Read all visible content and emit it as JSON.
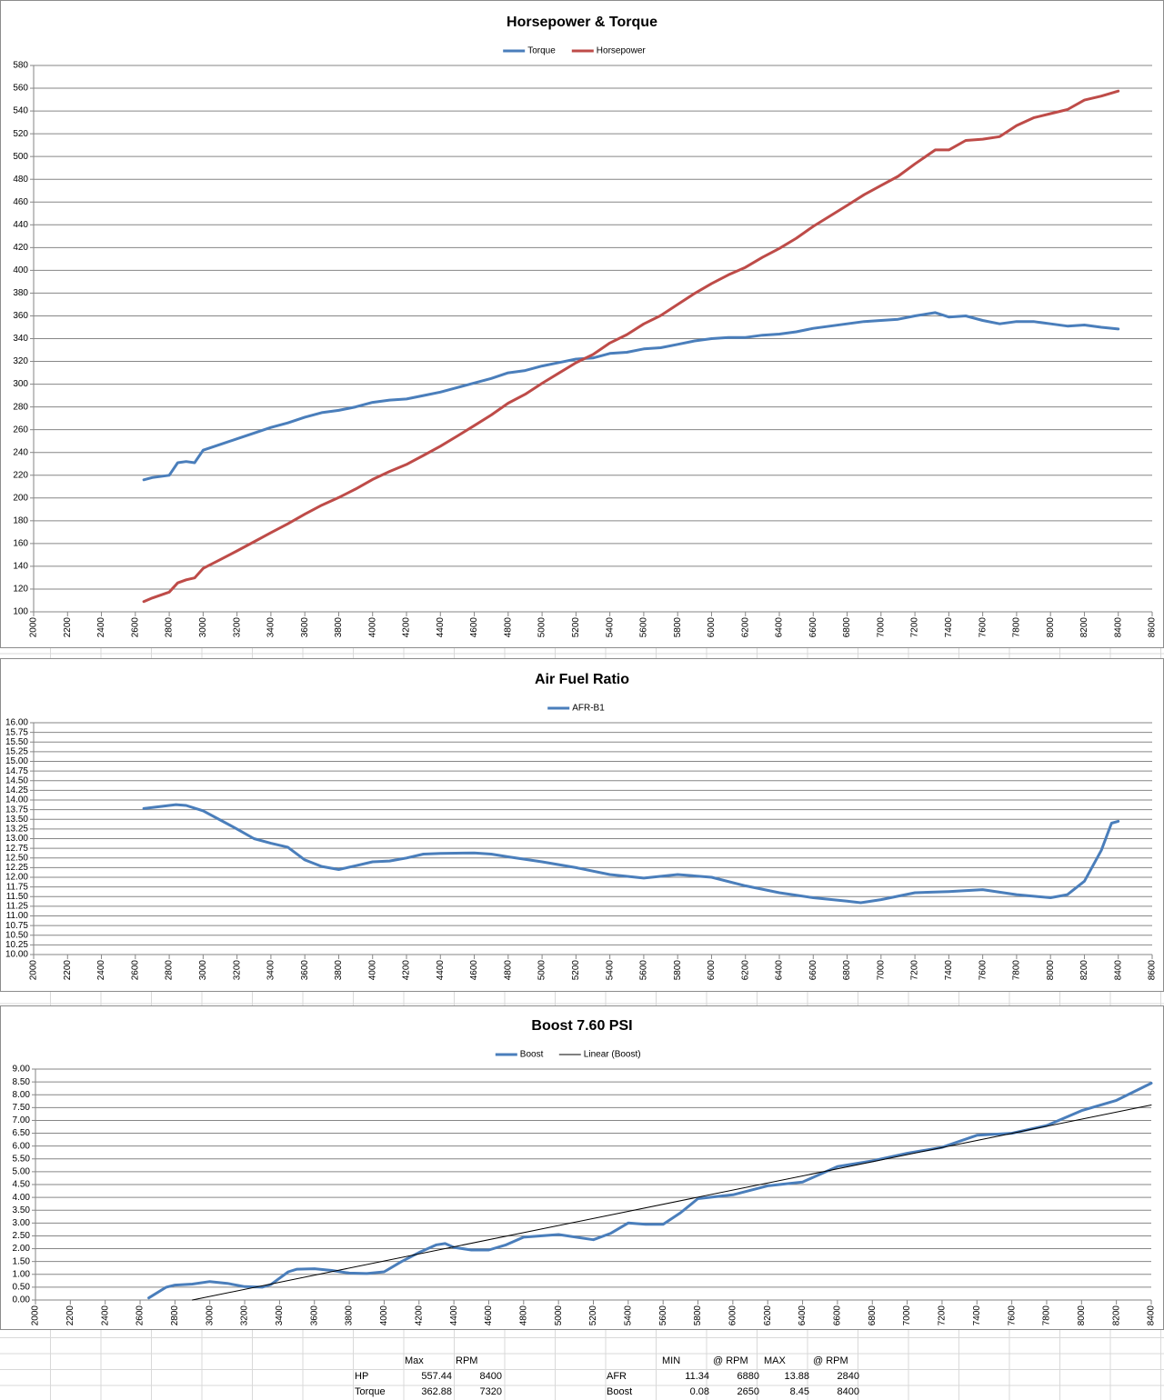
{
  "chart_data": [
    {
      "type": "line",
      "title": "Horsepower & Torque",
      "legend": "top",
      "grid": true,
      "xlim": [
        2000,
        8600
      ],
      "xticks": [
        2000,
        2200,
        2400,
        2600,
        2800,
        3000,
        3200,
        3400,
        3600,
        3800,
        4000,
        4200,
        4400,
        4600,
        4800,
        5000,
        5200,
        5400,
        5600,
        5800,
        6000,
        6200,
        6400,
        6600,
        6800,
        7000,
        7200,
        7400,
        7600,
        7800,
        8000,
        8200,
        8400,
        8600
      ],
      "ylim": [
        100,
        580
      ],
      "yticks": [
        100,
        120,
        140,
        160,
        180,
        200,
        220,
        240,
        260,
        280,
        300,
        320,
        340,
        360,
        380,
        400,
        420,
        440,
        460,
        480,
        500,
        520,
        540,
        560,
        580
      ],
      "x": [
        2650,
        2700,
        2800,
        2850,
        2900,
        2950,
        3000,
        3100,
        3200,
        3300,
        3400,
        3500,
        3600,
        3700,
        3800,
        3900,
        4000,
        4100,
        4200,
        4300,
        4400,
        4500,
        4600,
        4700,
        4800,
        4900,
        5000,
        5100,
        5200,
        5300,
        5400,
        5500,
        5600,
        5700,
        5800,
        5900,
        6000,
        6100,
        6200,
        6300,
        6400,
        6500,
        6600,
        6700,
        6800,
        6900,
        7000,
        7100,
        7200,
        7320,
        7400,
        7500,
        7600,
        7700,
        7800,
        7900,
        8000,
        8100,
        8200,
        8300,
        8400
      ],
      "series": [
        {
          "name": "Torque",
          "color": "#4a7ebb",
          "line_width": 3,
          "values": [
            216,
            218,
            220,
            231,
            232,
            231,
            242,
            247,
            252,
            257,
            262,
            266,
            271,
            275,
            277,
            280,
            284,
            286,
            287,
            290,
            293,
            297,
            301,
            305,
            310,
            312,
            316,
            319,
            322,
            323,
            327,
            328,
            331,
            332,
            335,
            338,
            340,
            341,
            341,
            343,
            344,
            346,
            349,
            351,
            353,
            355,
            356,
            357,
            360,
            362.88,
            359,
            360,
            356,
            353,
            355,
            355,
            353,
            351,
            352,
            350,
            348.5
          ]
        },
        {
          "name": "Horsepower",
          "color": "#be4b48",
          "line_width": 3,
          "values": [
            109.0,
            112.1,
            117.3,
            125.4,
            128.1,
            129.8,
            138.2,
            145.8,
            153.5,
            161.5,
            169.6,
            177.3,
            185.8,
            193.7,
            200.4,
            207.9,
            216.3,
            223.3,
            229.5,
            237.4,
            245.5,
            254.5,
            263.6,
            272.9,
            283.3,
            291.1,
            300.8,
            309.8,
            318.8,
            326.0,
            336.2,
            343.5,
            352.9,
            360.3,
            370.0,
            379.7,
            388.4,
            396.1,
            402.6,
            411.4,
            419.2,
            428.2,
            438.6,
            447.8,
            457.0,
            466.4,
            474.5,
            482.6,
            493.5,
            505.8,
            505.8,
            514.1,
            515.2,
            517.5,
            527.2,
            534.0,
            537.7,
            541.3,
            549.6,
            553.1,
            557.44
          ]
        }
      ]
    },
    {
      "type": "line",
      "title": "Air Fuel Ratio",
      "legend": "top",
      "grid": true,
      "xlim": [
        2000,
        8600
      ],
      "xticks": [
        2000,
        2200,
        2400,
        2600,
        2800,
        3000,
        3200,
        3400,
        3600,
        3800,
        4000,
        4200,
        4400,
        4600,
        4800,
        5000,
        5200,
        5400,
        5600,
        5800,
        6000,
        6200,
        6400,
        6600,
        6800,
        7000,
        7200,
        7400,
        7600,
        7800,
        8000,
        8200,
        8400,
        8600
      ],
      "ylim": [
        10,
        16
      ],
      "yticks": [
        {
          "value": 10,
          "label": "10.00"
        },
        {
          "value": 10.25,
          "label": "10.25"
        },
        {
          "value": 10.5,
          "label": "10.50"
        },
        {
          "value": 10.75,
          "label": "10.75"
        },
        {
          "value": 11,
          "label": "11.00"
        },
        {
          "value": 11.25,
          "label": "11.25"
        },
        {
          "value": 11.5,
          "label": "11.50"
        },
        {
          "value": 11.75,
          "label": "11.75"
        },
        {
          "value": 12,
          "label": "12.00"
        },
        {
          "value": 12.25,
          "label": "12.25"
        },
        {
          "value": 12.5,
          "label": "12.50"
        },
        {
          "value": 12.75,
          "label": "12.75"
        },
        {
          "value": 13,
          "label": "13.00"
        },
        {
          "value": 13.25,
          "label": "13.25"
        },
        {
          "value": 13.5,
          "label": "13.50"
        },
        {
          "value": 13.75,
          "label": "13.75"
        },
        {
          "value": 14,
          "label": "14.00"
        },
        {
          "value": 14.25,
          "label": "14.25"
        },
        {
          "value": 14.5,
          "label": "14.50"
        },
        {
          "value": 14.75,
          "label": "14.75"
        },
        {
          "value": 15,
          "label": "15.00"
        },
        {
          "value": 15.25,
          "label": "15.25"
        },
        {
          "value": 15.5,
          "label": "15.50"
        },
        {
          "value": 15.75,
          "label": "15.75"
        },
        {
          "value": 16,
          "label": "16.00"
        }
      ],
      "x": [
        2650,
        2800,
        2840,
        2900,
        3000,
        3200,
        3300,
        3400,
        3500,
        3600,
        3700,
        3800,
        3900,
        4000,
        4100,
        4200,
        4300,
        4400,
        4600,
        4700,
        4800,
        5000,
        5200,
        5400,
        5600,
        5800,
        6000,
        6200,
        6400,
        6600,
        6800,
        6880,
        7000,
        7200,
        7400,
        7600,
        7800,
        8000,
        8100,
        8200,
        8300,
        8360,
        8400
      ],
      "series": [
        {
          "name": "AFR-B1",
          "color": "#4a7ebb",
          "line_width": 3,
          "values": [
            13.78,
            13.86,
            13.88,
            13.86,
            13.72,
            13.25,
            13.0,
            12.88,
            12.78,
            12.45,
            12.28,
            12.2,
            12.3,
            12.4,
            12.42,
            12.5,
            12.6,
            12.62,
            12.63,
            12.6,
            12.53,
            12.4,
            12.25,
            12.07,
            11.98,
            12.07,
            12.0,
            11.78,
            11.6,
            11.47,
            11.38,
            11.34,
            11.42,
            11.6,
            11.63,
            11.68,
            11.55,
            11.47,
            11.55,
            11.9,
            12.7,
            13.4,
            13.45
          ]
        }
      ]
    },
    {
      "type": "line",
      "title": "Boost 7.60 PSI",
      "legend": "top",
      "grid": true,
      "xlim": [
        2000,
        8400
      ],
      "xticks": [
        2000,
        2200,
        2400,
        2600,
        2800,
        3000,
        3200,
        3400,
        3600,
        3800,
        4000,
        4200,
        4400,
        4600,
        4800,
        5000,
        5200,
        5400,
        5600,
        5800,
        6000,
        6200,
        6400,
        6600,
        6800,
        7000,
        7200,
        7400,
        7600,
        7800,
        8000,
        8200,
        8400
      ],
      "ylim": [
        0,
        9
      ],
      "yticks": [
        {
          "value": 0,
          "label": "0.00"
        },
        {
          "value": 0.5,
          "label": "0.50"
        },
        {
          "value": 1,
          "label": "1.00"
        },
        {
          "value": 1.5,
          "label": "1.50"
        },
        {
          "value": 2,
          "label": "2.00"
        },
        {
          "value": 2.5,
          "label": "2.50"
        },
        {
          "value": 3,
          "label": "3.00"
        },
        {
          "value": 3.5,
          "label": "3.50"
        },
        {
          "value": 4,
          "label": "4.00"
        },
        {
          "value": 4.5,
          "label": "4.50"
        },
        {
          "value": 5,
          "label": "5.00"
        },
        {
          "value": 5.5,
          "label": "5.50"
        },
        {
          "value": 6,
          "label": "6.00"
        },
        {
          "value": 6.5,
          "label": "6.50"
        },
        {
          "value": 7,
          "label": "7.00"
        },
        {
          "value": 7.5,
          "label": "7.50"
        },
        {
          "value": 8,
          "label": "8.00"
        },
        {
          "value": 8.5,
          "label": "8.50"
        },
        {
          "value": 9,
          "label": "9.00"
        }
      ],
      "x": [
        2650,
        2750,
        2800,
        2900,
        3000,
        3100,
        3200,
        3300,
        3350,
        3450,
        3500,
        3600,
        3700,
        3800,
        3900,
        4000,
        4100,
        4200,
        4300,
        4350,
        4400,
        4500,
        4600,
        4700,
        4800,
        5000,
        5200,
        5300,
        5400,
        5500,
        5600,
        5700,
        5800,
        6000,
        6200,
        6400,
        6600,
        6800,
        7000,
        7200,
        7400,
        7600,
        7800,
        8000,
        8200,
        8400
      ],
      "series": [
        {
          "name": "Boost",
          "color": "#4a7ebb",
          "line_width": 3,
          "values": [
            0.08,
            0.5,
            0.58,
            0.62,
            0.72,
            0.65,
            0.52,
            0.5,
            0.6,
            1.1,
            1.2,
            1.22,
            1.15,
            1.05,
            1.03,
            1.1,
            1.5,
            1.85,
            2.15,
            2.2,
            2.05,
            1.95,
            1.95,
            2.15,
            2.45,
            2.55,
            2.35,
            2.6,
            3.0,
            2.95,
            2.95,
            3.4,
            3.95,
            4.1,
            4.45,
            4.6,
            5.2,
            5.42,
            5.72,
            5.95,
            6.42,
            6.5,
            6.8,
            7.38,
            7.78,
            8.45
          ]
        },
        {
          "name": "Linear (Boost)",
          "color": "#000000",
          "line_width": 1,
          "x": [
            2900,
            8400
          ],
          "values": [
            0,
            7.6
          ]
        }
      ]
    }
  ],
  "summary": {
    "left": {
      "header": [
        "Max",
        "RPM"
      ],
      "rows": [
        [
          "HP",
          557.44,
          8400
        ],
        [
          "Torque",
          362.88,
          7320
        ]
      ]
    },
    "right": {
      "header": [
        "MIN",
        "@ RPM",
        "MAX",
        "@ RPM"
      ],
      "rows": [
        [
          "AFR",
          11.34,
          6880,
          13.88,
          2840
        ],
        [
          "Boost",
          0.08,
          2650,
          8.45,
          8400
        ]
      ]
    }
  }
}
